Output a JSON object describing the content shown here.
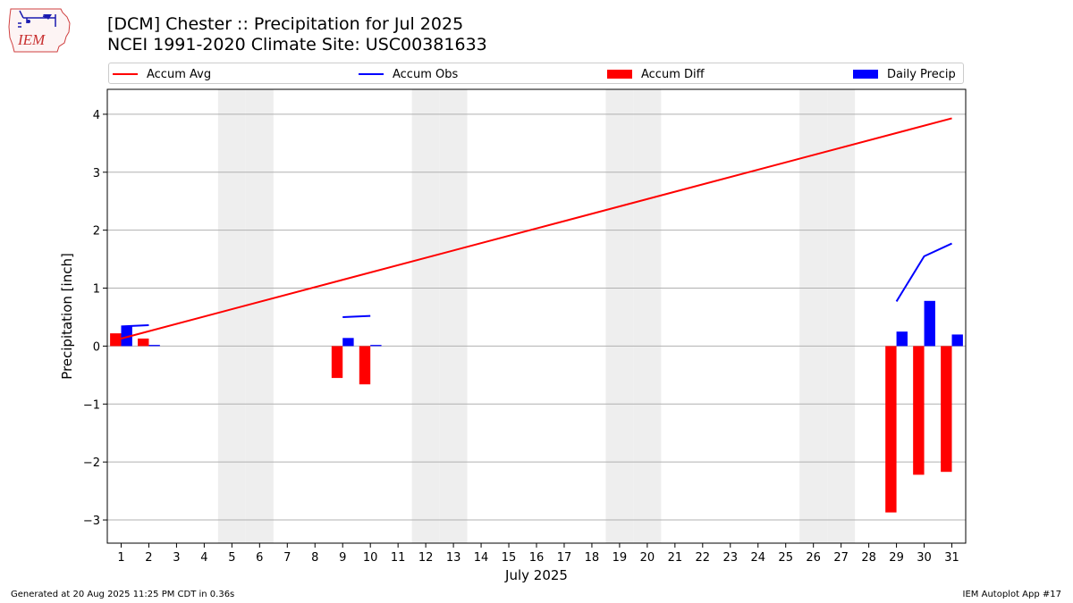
{
  "header": {
    "title_line1": "[DCM] Chester :: Precipitation for Jul 2025",
    "title_line2": "NCEI 1991-2020 Climate Site: USC00381633",
    "logo_text": "IEM"
  },
  "footer": {
    "left": "Generated at 20 Aug 2025 11:25 PM CDT in 0.36s",
    "right": "IEM Autoplot App #17"
  },
  "colors": {
    "avg": "#ff0000",
    "obs": "#0000ff",
    "diff": "#ff0000",
    "daily": "#0000ff",
    "weekend_band": "#eeeeee",
    "grid": "#b0b0b0"
  },
  "chart_data": {
    "type": "bar",
    "xlabel": "July 2025",
    "ylabel": "Precipitation [inch]",
    "xlim": [
      0.5,
      31.5
    ],
    "ylim": [
      -3.4,
      4.43
    ],
    "grid": "horizontal",
    "legend_position": "top",
    "x_ticks": [
      "1",
      "2",
      "3",
      "4",
      "5",
      "6",
      "7",
      "8",
      "9",
      "10",
      "11",
      "12",
      "13",
      "14",
      "15",
      "16",
      "17",
      "18",
      "19",
      "20",
      "21",
      "22",
      "23",
      "24",
      "25",
      "26",
      "27",
      "28",
      "29",
      "30",
      "31"
    ],
    "y_ticks": [
      -3,
      -2,
      -1,
      0,
      1,
      2,
      3,
      4
    ],
    "y_tick_labels": [
      "−3",
      "−2",
      "−1",
      "0",
      "1",
      "2",
      "3",
      "4"
    ],
    "weekend_days": [
      5,
      6,
      12,
      13,
      19,
      20,
      26,
      27
    ],
    "legend": [
      "Accum Avg",
      "Accum Obs",
      "Accum Diff",
      "Daily Precip"
    ],
    "series": [
      {
        "name": "Accum Avg",
        "kind": "line",
        "x": [
          1,
          31
        ],
        "values": [
          0.13,
          3.93
        ]
      },
      {
        "name": "Accum Obs",
        "kind": "line",
        "segments": [
          {
            "x": [
              1,
              2
            ],
            "values": [
              0.34,
              0.36
            ]
          },
          {
            "x": [
              9,
              10
            ],
            "values": [
              0.5,
              0.52
            ]
          },
          {
            "x": [
              29,
              30,
              31
            ],
            "values": [
              0.77,
              1.55,
              1.77
            ]
          }
        ]
      },
      {
        "name": "Accum Diff",
        "kind": "bar",
        "x": [
          1,
          2,
          9,
          10,
          29,
          30,
          31
        ],
        "values": [
          0.22,
          0.13,
          -0.55,
          -0.66,
          -2.87,
          -2.22,
          -2.17
        ]
      },
      {
        "name": "Daily Precip",
        "kind": "bar",
        "x": [
          1,
          2,
          9,
          10,
          29,
          30,
          31
        ],
        "values": [
          0.34,
          0.02,
          0.14,
          0.02,
          0.25,
          0.78,
          0.2
        ]
      }
    ]
  }
}
